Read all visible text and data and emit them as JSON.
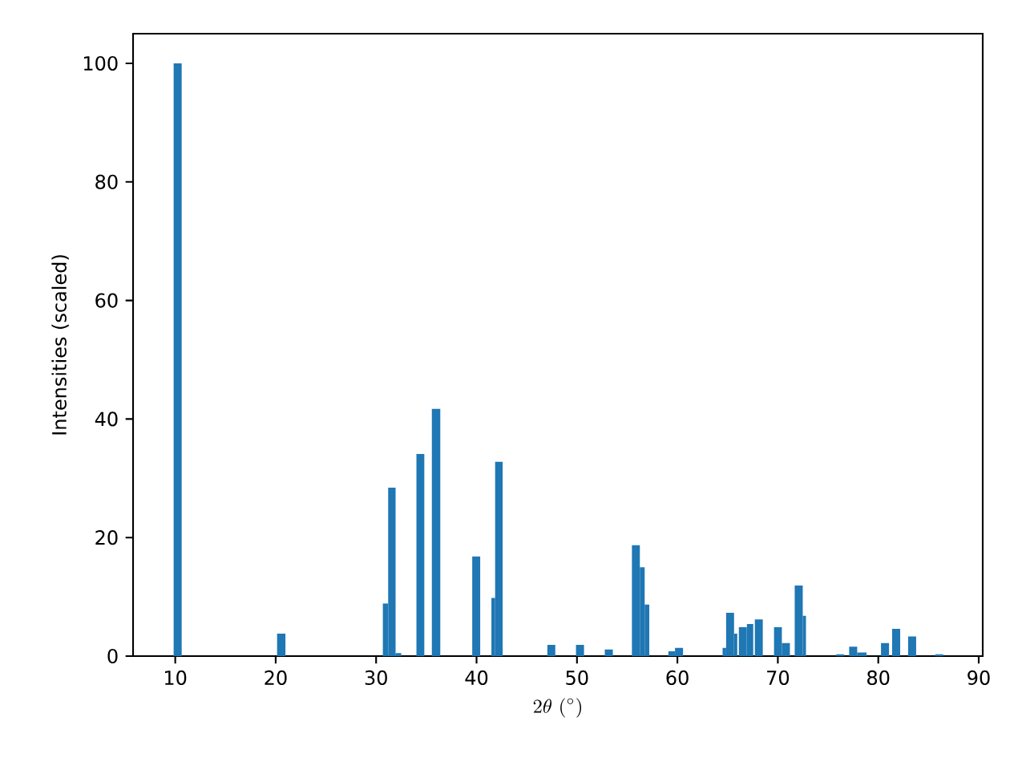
{
  "chart_data": {
    "type": "histogram",
    "xlabel": "2\\theta\\ (^\\circ)",
    "ylabel": "Intensities (scaled)",
    "bins": [
      9.84,
      10.64,
      20.13,
      20.97,
      30.67,
      31.2,
      31.94,
      32.5,
      34.0,
      34.8,
      35.55,
      36.39,
      39.57,
      40.37,
      41.48,
      41.85,
      42.6,
      47.04,
      47.84,
      49.9,
      50.7,
      52.77,
      53.57,
      55.47,
      56.26,
      56.74,
      57.2,
      59.1,
      59.76,
      60.56,
      64.5,
      64.85,
      65.64,
      65.96,
      66.12,
      66.91,
      67.55,
      67.71,
      68.5,
      69.62,
      70.4,
      71.2,
      71.68,
      72.48,
      72.8,
      75.82,
      76.6,
      77.1,
      77.9,
      78.84,
      80.27,
      81.07,
      81.38,
      82.18,
      82.97,
      83.77,
      85.67,
      86.47
    ],
    "values": [
      100,
      0,
      3.8,
      0,
      8.9,
      28.4,
      0.5,
      0,
      34.1,
      0,
      41.7,
      0,
      16.8,
      0,
      9.8,
      32.8,
      0,
      1.9,
      0,
      1.9,
      0,
      1.1,
      0,
      18.7,
      15.0,
      8.7,
      0,
      0.8,
      1.4,
      0,
      1.4,
      7.3,
      3.8,
      0,
      4.9,
      5.4,
      0,
      6.2,
      0,
      4.9,
      2.2,
      0,
      11.9,
      6.8,
      0,
      0.3,
      0,
      1.6,
      0.6,
      0,
      2.2,
      0,
      4.6,
      0,
      3.3,
      0,
      0.3
    ],
    "color": "#1f77b4",
    "xlim": [
      5.8,
      90.4
    ],
    "ylim": [
      0,
      105
    ],
    "xticks": [
      10,
      20,
      30,
      40,
      50,
      60,
      70,
      80,
      90
    ],
    "yticks": [
      0,
      20,
      40,
      60,
      80,
      100
    ]
  }
}
